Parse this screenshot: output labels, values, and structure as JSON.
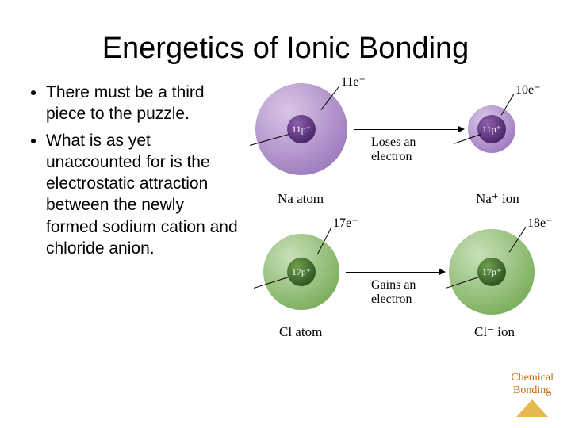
{
  "title": "Energetics of Ionic Bonding",
  "bullets": [
    "There must be a third piece to the puzzle.",
    "What is as yet unaccounted for is the electrostatic attraction between the newly formed sodium cation and chloride anion."
  ],
  "diagram": {
    "na_atom": {
      "electron_label": "11e⁻",
      "nucleus_label": "11p⁺",
      "name_label": "Na atom",
      "cloud_radius": 58,
      "nucleus_radius": 18,
      "cloud_color_light": "#d9c6e6",
      "cloud_color_dark": "#a07fc0",
      "nucleus_color_light": "#8e5fb0",
      "nucleus_color_dark": "#4a2768"
    },
    "na_ion": {
      "electron_label": "10e⁻",
      "nucleus_label": "11p⁺",
      "name_label": "Na⁺ ion",
      "cloud_radius": 30,
      "nucleus_radius": 18,
      "cloud_color_light": "#d9c6e6",
      "cloud_color_dark": "#a07fc0",
      "nucleus_color_light": "#8e5fb0",
      "nucleus_color_dark": "#4a2768"
    },
    "cl_atom": {
      "electron_label": "17e⁻",
      "nucleus_label": "17p⁺",
      "name_label": "Cl atom",
      "cloud_radius": 48,
      "nucleus_radius": 18,
      "cloud_color_light": "#c8e0b8",
      "cloud_color_dark": "#7fb060",
      "nucleus_color_light": "#6fa050",
      "nucleus_color_dark": "#2f5520"
    },
    "cl_ion": {
      "electron_label": "18e⁻",
      "nucleus_label": "17p⁺",
      "name_label": "Cl⁻ ion",
      "cloud_radius": 54,
      "nucleus_radius": 18,
      "cloud_color_light": "#c8e0b8",
      "cloud_color_dark": "#7fb060",
      "nucleus_color_light": "#6fa050",
      "nucleus_color_dark": "#2f5520"
    },
    "arrow1_label_line1": "Loses an",
    "arrow1_label_line2": "electron",
    "arrow2_label_line1": "Gains an",
    "arrow2_label_line2": "electron",
    "label_fontsize": 16,
    "name_fontsize": 17
  },
  "footer": {
    "line1": "Chemical",
    "line2": "Bonding",
    "text_color": "#cc6600",
    "triangle_color": "#e6b84d"
  }
}
